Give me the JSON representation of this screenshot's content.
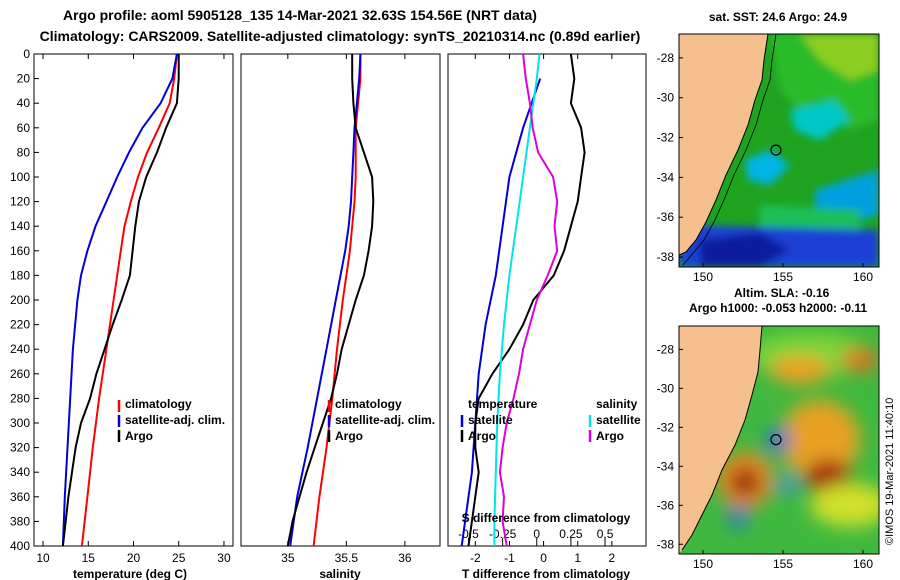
{
  "header": {
    "line1": "Argo profile: aoml 5905128_135 14-Mar-2021 32.63S 154.56E (NRT data)",
    "line2": "Climatology: CARS2009. Satellite-adjusted climatology: synTS_20210314.nc (0.89d earlier)"
  },
  "colors": {
    "climatology": "#ff0000",
    "satellite": "#0000dd",
    "argo": "#000000",
    "sal_satellite": "#00e5e5",
    "sal_argo": "#dd00dd",
    "land": "#f5c08e"
  },
  "chart_data": [
    {
      "type": "line",
      "id": "temperature",
      "xlabel": "temperature (deg C)",
      "ylabel": "",
      "xlim": [
        9,
        31
      ],
      "ylim": [
        400,
        0
      ],
      "xticks": [
        "10",
        "15",
        "20",
        "25",
        "30"
      ],
      "xtick_values": [
        10,
        15,
        20,
        25,
        30
      ],
      "yticks": [
        "0",
        "20",
        "40",
        "60",
        "80",
        "100",
        "120",
        "140",
        "160",
        "180",
        "200",
        "220",
        "240",
        "260",
        "280",
        "300",
        "320",
        "340",
        "360",
        "380",
        "400"
      ],
      "ytick_values": [
        0,
        20,
        40,
        60,
        80,
        100,
        120,
        140,
        160,
        180,
        200,
        220,
        240,
        260,
        280,
        300,
        320,
        340,
        360,
        380,
        400
      ],
      "legend": [
        "climatology",
        "satellite-adj. clim.",
        "Argo"
      ],
      "series": [
        {
          "name": "climatology",
          "color": "#ff0000",
          "depth": [
            0,
            20,
            40,
            60,
            80,
            100,
            120,
            140,
            160,
            180,
            200,
            240,
            280,
            320,
            360,
            400
          ],
          "x": [
            24.8,
            24.5,
            24.0,
            22.8,
            21.5,
            20.5,
            19.7,
            19.0,
            18.6,
            18.2,
            17.8,
            17.0,
            16.2,
            15.5,
            14.9,
            14.3
          ]
        },
        {
          "name": "satellite-adj. clim.",
          "color": "#0000dd",
          "depth": [
            0,
            20,
            40,
            60,
            80,
            100,
            120,
            140,
            160,
            180,
            200,
            240,
            280,
            320,
            360,
            400
          ],
          "x": [
            24.8,
            24.3,
            23.0,
            21.0,
            19.5,
            18.2,
            17.0,
            15.8,
            14.9,
            14.2,
            13.8,
            13.3,
            13.0,
            12.7,
            12.4,
            12.2
          ]
        },
        {
          "name": "Argo",
          "color": "#000000",
          "depth": [
            0,
            20,
            40,
            60,
            80,
            100,
            120,
            140,
            160,
            180,
            200,
            220,
            240,
            260,
            280,
            300,
            320,
            340,
            360,
            380,
            400
          ],
          "x": [
            25.0,
            25.0,
            24.8,
            23.6,
            22.6,
            21.4,
            20.6,
            20.2,
            19.9,
            19.6,
            18.7,
            17.7,
            16.8,
            15.9,
            15.2,
            14.2,
            13.6,
            13.2,
            12.8,
            12.5,
            12.2
          ]
        }
      ]
    },
    {
      "type": "line",
      "id": "salinity",
      "xlabel": "salinity",
      "ylabel": "",
      "xlim": [
        34.6,
        36.3
      ],
      "ylim": [
        400,
        0
      ],
      "xticks": [
        "35",
        "35.5",
        "36"
      ],
      "xtick_values": [
        35,
        35.5,
        36
      ],
      "legend": [
        "climatology",
        "satellite-adj. clim.",
        "Argo"
      ],
      "series": [
        {
          "name": "climatology",
          "color": "#ff0000",
          "depth": [
            0,
            20,
            40,
            60,
            80,
            100,
            120,
            140,
            160,
            180,
            200,
            240,
            280,
            320,
            360,
            400
          ],
          "x": [
            35.62,
            35.62,
            35.6,
            35.58,
            35.58,
            35.58,
            35.57,
            35.55,
            35.53,
            35.5,
            35.47,
            35.42,
            35.38,
            35.33,
            35.27,
            35.22
          ]
        },
        {
          "name": "satellite-adj. clim.",
          "color": "#0000dd",
          "depth": [
            0,
            20,
            40,
            60,
            80,
            100,
            120,
            140,
            160,
            180,
            200,
            240,
            280,
            320,
            360,
            400
          ],
          "x": [
            35.62,
            35.61,
            35.59,
            35.57,
            35.56,
            35.55,
            35.54,
            35.52,
            35.49,
            35.45,
            35.41,
            35.33,
            35.25,
            35.17,
            35.08,
            35.02
          ]
        },
        {
          "name": "Argo",
          "color": "#000000",
          "depth": [
            0,
            20,
            40,
            60,
            80,
            100,
            120,
            140,
            160,
            180,
            200,
            220,
            240,
            260,
            280,
            300,
            320,
            340,
            360,
            380,
            400
          ],
          "x": [
            35.55,
            35.55,
            35.56,
            35.58,
            35.65,
            35.72,
            35.73,
            35.72,
            35.69,
            35.65,
            35.58,
            35.52,
            35.46,
            35.42,
            35.37,
            35.3,
            35.23,
            35.16,
            35.1,
            35.04,
            35.0
          ]
        }
      ]
    },
    {
      "type": "line",
      "id": "difference",
      "xlabel": "T difference from climatology",
      "ylabel": "",
      "xlim": [
        -2.8,
        3.0
      ],
      "ylim": [
        400,
        0
      ],
      "xticks": [
        "-2",
        "-1",
        "0",
        "1",
        "2"
      ],
      "xtick_values": [
        -2,
        -1,
        0,
        1,
        2
      ],
      "inner_axis": {
        "label": "S difference from climatology",
        "ticks": [
          "-0.5",
          "-0.25",
          "0",
          "0.25",
          "0.5"
        ],
        "tick_values": [
          -0.5,
          -0.25,
          0,
          0.25,
          0.5
        ]
      },
      "legend_temperature": {
        "title": "temperature",
        "items": [
          "satellite",
          "Argo"
        ]
      },
      "legend_salinity": {
        "title": "salinity",
        "items": [
          "satellite",
          "Argo"
        ]
      },
      "series": [
        {
          "name": "temperature satellite",
          "color": "#0000dd",
          "depth": [
            20,
            60,
            100,
            140,
            180,
            220,
            260,
            300,
            340,
            380,
            400
          ],
          "x": [
            -0.1,
            -0.6,
            -1.0,
            -1.2,
            -1.4,
            -1.7,
            -1.9,
            -2.0,
            -2.1,
            -2.3,
            -2.4
          ]
        },
        {
          "name": "temperature Argo",
          "color": "#000000",
          "depth": [
            0,
            20,
            40,
            60,
            80,
            100,
            120,
            140,
            160,
            180,
            200,
            220,
            240,
            260,
            280,
            300,
            320,
            340,
            360,
            380,
            400
          ],
          "x": [
            0.8,
            0.9,
            0.8,
            1.1,
            1.2,
            1.1,
            1.0,
            0.8,
            0.6,
            0.3,
            -0.3,
            -0.6,
            -1.0,
            -1.5,
            -1.9,
            -2.0,
            -2.0,
            -1.9,
            -2.0,
            -2.1,
            -2.2
          ]
        },
        {
          "name": "salinity satellite",
          "color": "#00e5e5",
          "depth": [
            0,
            20,
            60,
            100,
            140,
            180,
            220,
            260,
            300,
            340,
            380,
            400
          ],
          "x": [
            0.02,
            0.0,
            -0.05,
            -0.1,
            -0.15,
            -0.2,
            -0.24,
            -0.27,
            -0.29,
            -0.3,
            -0.31,
            -0.31
          ]
        },
        {
          "name": "salinity Argo",
          "color": "#dd00dd",
          "depth": [
            0,
            20,
            40,
            60,
            80,
            100,
            120,
            140,
            160,
            180,
            200,
            220,
            240,
            260,
            280,
            300,
            320,
            340,
            360,
            380,
            400
          ],
          "x": [
            -0.1,
            -0.08,
            -0.05,
            -0.03,
            0.01,
            0.12,
            0.15,
            0.13,
            0.15,
            0.08,
            0.0,
            -0.05,
            -0.1,
            -0.13,
            -0.17,
            -0.22,
            -0.25,
            -0.27,
            -0.24,
            -0.25,
            -0.22
          ]
        }
      ]
    },
    {
      "type": "heatmap",
      "id": "sst_map",
      "title": "sat. SST: 24.6 Argo: 24.9",
      "xlim": [
        148.5,
        161
      ],
      "ylim": [
        -38.5,
        -26.8
      ],
      "xticks": [
        "150",
        "155",
        "160"
      ],
      "xtick_values": [
        150,
        155,
        160
      ],
      "yticks": [
        "-28",
        "-30",
        "-32",
        "-34",
        "-36",
        "-38"
      ],
      "ytick_values": [
        -28,
        -30,
        -32,
        -34,
        -36,
        -38
      ],
      "marker": {
        "lon": 154.56,
        "lat": -32.63
      }
    },
    {
      "type": "heatmap",
      "id": "sla_map",
      "title": "Altim. SLA: -0.16",
      "subtitle": "Argo h1000: -0.053 h2000: -0.11",
      "xlim": [
        148.5,
        161
      ],
      "ylim": [
        -38.5,
        -26.8
      ],
      "xticks": [
        "150",
        "155",
        "160"
      ],
      "xtick_values": [
        150,
        155,
        160
      ],
      "yticks": [
        "-28",
        "-30",
        "-32",
        "-34",
        "-36",
        "-38"
      ],
      "ytick_values": [
        -28,
        -30,
        -32,
        -34,
        -36,
        -38
      ],
      "marker": {
        "lon": 154.56,
        "lat": -32.63
      }
    }
  ],
  "credit": "©IMOS 19-Mar-2021 11:40:10"
}
